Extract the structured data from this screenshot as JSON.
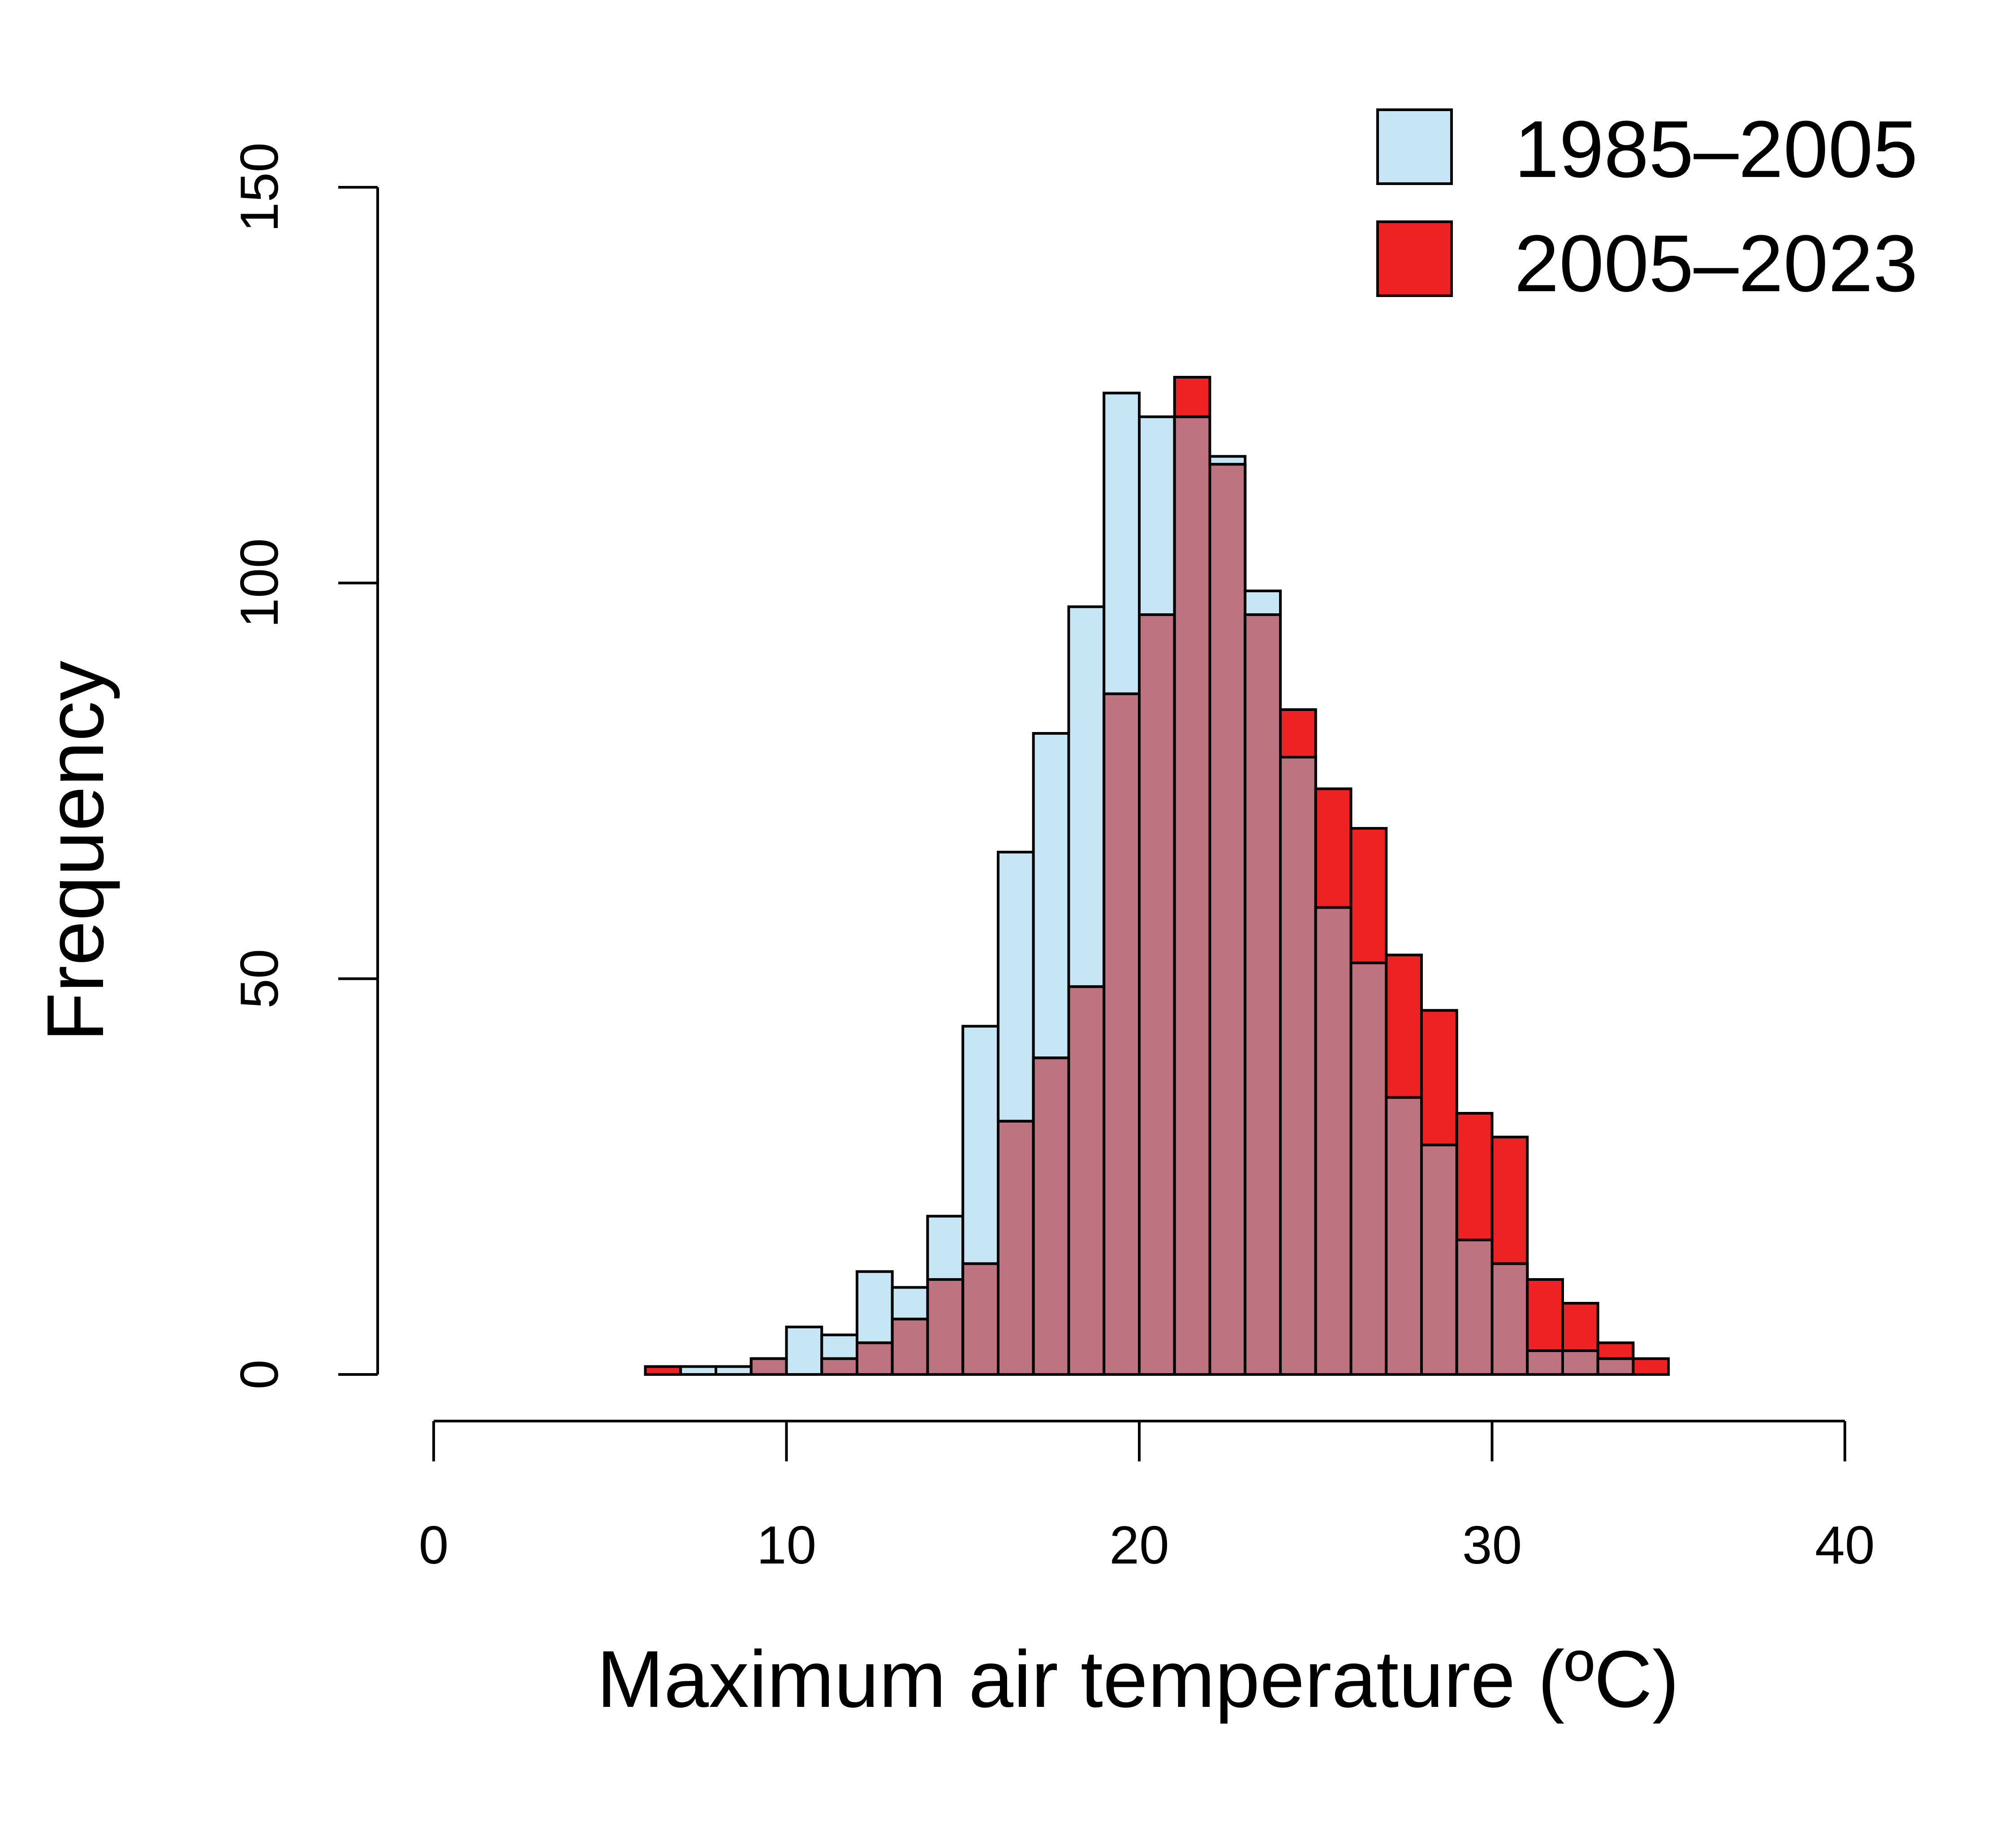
{
  "chart_data": {
    "type": "bar",
    "subtype": "overlaid-histogram",
    "title": "",
    "xlabel": "Maximum air temperature (ºC)",
    "ylabel": "Frequency",
    "xlim": [
      0,
      40
    ],
    "ylim": [
      0,
      150
    ],
    "xticks": [
      "0",
      "10",
      "20",
      "30",
      "40"
    ],
    "yticks": [
      "0",
      "50",
      "100",
      "150"
    ],
    "bin_width": 1,
    "bin_starts": [
      6,
      7,
      8,
      9,
      10,
      11,
      12,
      13,
      14,
      15,
      16,
      17,
      18,
      19,
      20,
      21,
      22,
      23,
      24,
      25,
      26,
      27,
      28,
      29,
      30,
      31,
      32,
      33,
      34
    ],
    "series": [
      {
        "name": "1985–2005",
        "color": "#c6e6f5",
        "values": [
          0,
          1,
          1,
          2,
          6,
          5,
          13,
          11,
          20,
          44,
          66,
          81,
          97,
          124,
          121,
          121,
          116,
          99,
          78,
          59,
          52,
          35,
          29,
          17,
          14,
          3,
          3,
          2,
          0
        ]
      },
      {
        "name": "2005–2023",
        "color": "#ee2222",
        "values": [
          1,
          0,
          0,
          2,
          0,
          2,
          4,
          7,
          12,
          14,
          32,
          40,
          49,
          86,
          96,
          126,
          115,
          96,
          84,
          74,
          69,
          53,
          46,
          33,
          30,
          12,
          9,
          4,
          2
        ]
      }
    ],
    "overlap_color": "#bd7380",
    "grid": false,
    "legend_position": "top-right"
  }
}
